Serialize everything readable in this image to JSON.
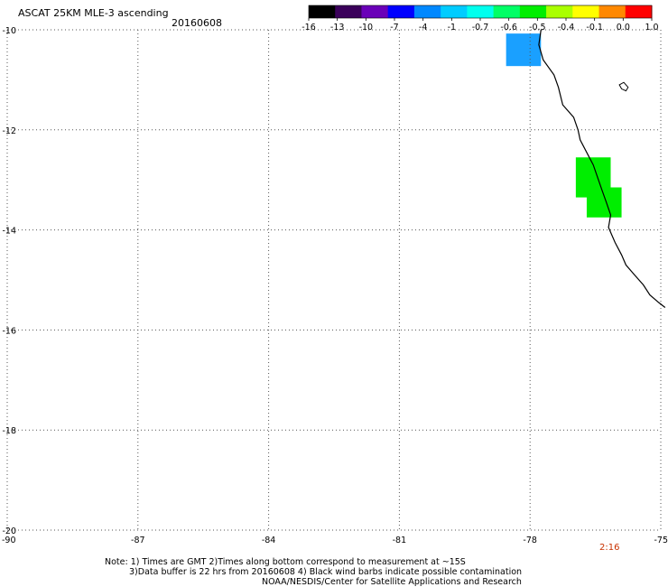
{
  "header": {
    "title": "ASCAT 25KM MLE-3 ascending",
    "date": "20160608"
  },
  "colorbar": {
    "labels": [
      "-16",
      "-13",
      "-10",
      "-7",
      "-4",
      "-1",
      "-0.7",
      "-0.6",
      "-0.5",
      "-0.4",
      "-0.1",
      "0.0",
      "1.0"
    ],
    "colors": [
      "#000000",
      "#3a005a",
      "#6a00b8",
      "#0000ff",
      "#0088ff",
      "#00ccff",
      "#00ffee",
      "#00ff66",
      "#00ee00",
      "#aaff00",
      "#ffff00",
      "#ff8800",
      "#ff0000"
    ]
  },
  "map": {
    "lat_labels": [
      "-10",
      "-12",
      "-14",
      "-16",
      "-18",
      "-20"
    ],
    "lon_labels": [
      "-90",
      "-87",
      "-84",
      "-81",
      "-78",
      "-75"
    ],
    "lat_range": [
      -20,
      -10
    ],
    "lon_range": [
      -90,
      -75
    ],
    "grid": "dotted",
    "cells": [
      {
        "lon": -78.15,
        "lat": -10.4,
        "dlon": 0.8,
        "dlat": 0.65,
        "color": "#1aa0ff"
      },
      {
        "lon": -76.55,
        "lat": -12.95,
        "dlon": 0.8,
        "dlat": 0.8,
        "color": "#00ee00"
      },
      {
        "lon": -76.3,
        "lat": -13.45,
        "dlon": 0.8,
        "dlat": 0.6,
        "color": "#00ee00"
      }
    ],
    "coast": [
      [
        -77.75,
        -10.0
      ],
      [
        -77.8,
        -10.3
      ],
      [
        -77.7,
        -10.6
      ],
      [
        -77.45,
        -10.9
      ],
      [
        -77.35,
        -11.15
      ],
      [
        -77.25,
        -11.5
      ],
      [
        -77.0,
        -11.75
      ],
      [
        -76.9,
        -12.0
      ],
      [
        -76.85,
        -12.2
      ],
      [
        -76.7,
        -12.45
      ],
      [
        -76.55,
        -12.7
      ],
      [
        -76.45,
        -12.95
      ],
      [
        -76.35,
        -13.2
      ],
      [
        -76.25,
        -13.45
      ],
      [
        -76.15,
        -13.7
      ],
      [
        -76.2,
        -13.95
      ],
      [
        -76.05,
        -14.25
      ],
      [
        -75.9,
        -14.5
      ],
      [
        -75.8,
        -14.7
      ],
      [
        -75.6,
        -14.9
      ],
      [
        -75.4,
        -15.1
      ],
      [
        -75.25,
        -15.3
      ],
      [
        -75.05,
        -15.45
      ],
      [
        -74.9,
        -15.55
      ]
    ],
    "island": [
      [
        -75.95,
        -11.1
      ],
      [
        -75.85,
        -11.05
      ],
      [
        -75.75,
        -11.15
      ],
      [
        -75.8,
        -11.22
      ],
      [
        -75.9,
        -11.18
      ]
    ]
  },
  "footer": {
    "time": "2:16",
    "note1": "Note: 1) Times are GMT 2)Times along bottom correspond to measurement at ~15S",
    "note2": "3)Data buffer is 22 hrs from 20160608 4) Black wind barbs indicate possible contamination",
    "note3": "NOAA/NESDIS/Center for Satellite Applications and Research"
  }
}
